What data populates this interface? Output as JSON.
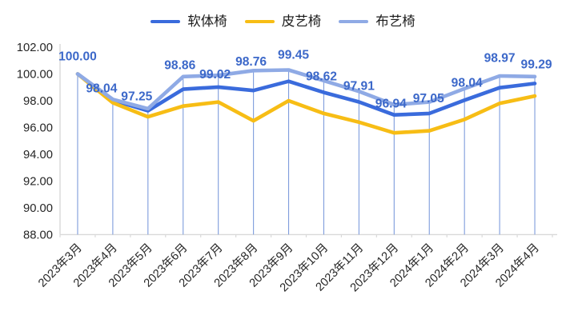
{
  "window": {
    "background": "#FFFFFF"
  },
  "colors": {
    "data_label_text": "#3C68C9",
    "axis_text": "#262626",
    "axis_line": "#D9D9D9",
    "dropline": "#7E9CDC",
    "legend_text": "#1A1A1A"
  },
  "legend": {
    "items": [
      {
        "label": "软体椅",
        "color": "#3A6BDC"
      },
      {
        "label": "皮艺椅",
        "color": "#F7BD15"
      },
      {
        "label": "布艺椅",
        "color": "#8FAAE5"
      }
    ]
  },
  "chart_data": {
    "type": "line",
    "title": "",
    "xlabel": "",
    "ylabel": "",
    "categories": [
      "2023年3月",
      "2023年4月",
      "2023年5月",
      "2023年6月",
      "2023年7月",
      "2023年8月",
      "2023年9月",
      "2023年10月",
      "2023年11月",
      "2023年12月",
      "2024年1月",
      "2024年2月",
      "2024年3月",
      "2024年4月"
    ],
    "series": [
      {
        "name": "软体椅",
        "color": "#3A6BDC",
        "data_labels": true,
        "values": [
          100.0,
          98.04,
          97.25,
          98.86,
          99.02,
          98.76,
          99.45,
          98.62,
          97.91,
          96.94,
          97.05,
          98.04,
          98.97,
          99.29
        ]
      },
      {
        "name": "皮艺椅",
        "color": "#F7BD15",
        "data_labels": false,
        "values": [
          100.0,
          97.85,
          96.8,
          97.6,
          97.9,
          96.5,
          98.0,
          97.05,
          96.4,
          95.6,
          95.75,
          96.6,
          97.8,
          98.35
        ]
      },
      {
        "name": "布艺椅",
        "color": "#8FAAE5",
        "data_labels": false,
        "values": [
          100.0,
          98.1,
          97.4,
          99.8,
          99.9,
          100.25,
          100.3,
          99.5,
          98.7,
          97.7,
          97.9,
          98.9,
          99.85,
          99.8
        ]
      }
    ],
    "ylim": [
      88,
      102
    ],
    "ytick_step": 2,
    "ytick_labels": [
      "102.00",
      "100.00",
      "98.00",
      "96.00",
      "94.00",
      "92.00",
      "90.00",
      "88.00"
    ],
    "value_format_decimals": 2,
    "legend_position": "top",
    "grid": "vertical-droplines",
    "x_label_rotation_deg": -45
  }
}
